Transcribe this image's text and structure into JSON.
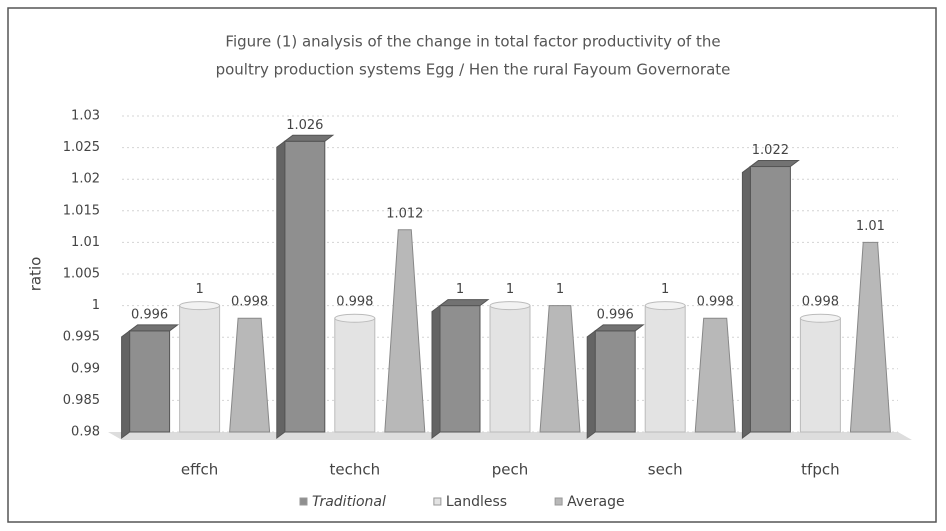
{
  "chart_data": {
    "type": "bar3d",
    "title": [
      "Figure (1) analysis of the change in total factor productivity of the",
      "poultry production systems Egg / Hen the rural Fayoum Governorate"
    ],
    "y_label": "ratio",
    "categories": [
      "effch",
      "techch",
      "pech",
      "sech",
      "tfpch"
    ],
    "series": [
      {
        "name": "Traditional",
        "color": "#8f8f8f",
        "values": [
          0.996,
          1.026,
          1,
          0.996,
          1.022
        ]
      },
      {
        "name": "Landless",
        "color": "#e3e3e3",
        "values": [
          1,
          0.998,
          1,
          1,
          0.998
        ]
      },
      {
        "name": "Average",
        "color": "#b8b8b8",
        "values": [
          0.998,
          1.012,
          1,
          0.998,
          1.01
        ]
      }
    ],
    "ylim": [
      0.98,
      1.03
    ],
    "yticks": [
      0.98,
      0.985,
      0.99,
      0.995,
      1,
      1.005,
      1.01,
      1.015,
      1.02,
      1.025,
      1.03
    ],
    "grid": true,
    "legend": "bottom"
  }
}
